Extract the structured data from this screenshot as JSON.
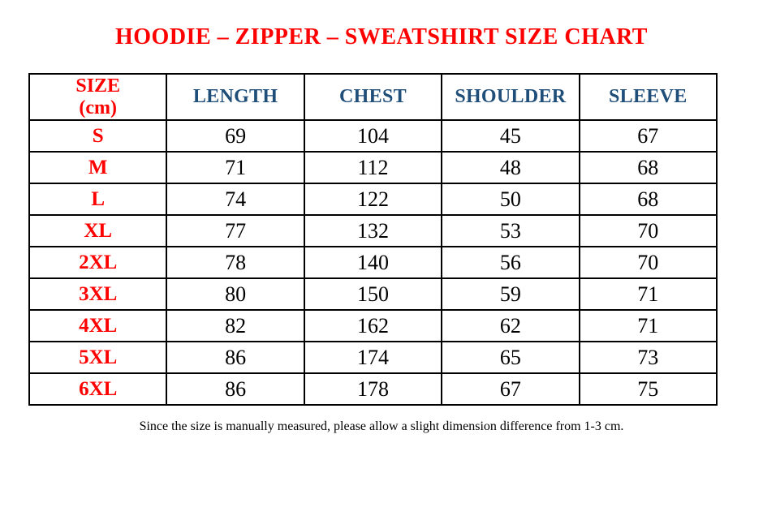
{
  "meta": {
    "stray_mark": "."
  },
  "colors": {
    "title_red": "#ff0000",
    "size_label_red": "#ff0000",
    "header_blue": "#1f4e79",
    "border_black": "#000000",
    "background": "#ffffff"
  },
  "title": "HOODIE – ZIPPER – SWEATSHIRT SIZE CHART",
  "table": {
    "header": {
      "size_line1": "SIZE",
      "size_line2": "(cm)",
      "cols": [
        "LENGTH",
        "CHEST",
        "SHOULDER",
        "SLEEVE"
      ]
    },
    "rows": [
      {
        "size": "S",
        "values": [
          69,
          104,
          45,
          67
        ]
      },
      {
        "size": "M",
        "values": [
          71,
          112,
          48,
          68
        ]
      },
      {
        "size": "L",
        "values": [
          74,
          122,
          50,
          68
        ]
      },
      {
        "size": "XL",
        "values": [
          77,
          132,
          53,
          70
        ]
      },
      {
        "size": "2XL",
        "values": [
          78,
          140,
          56,
          70
        ]
      },
      {
        "size": "3XL",
        "values": [
          80,
          150,
          59,
          71
        ]
      },
      {
        "size": "4XL",
        "values": [
          82,
          162,
          62,
          71
        ]
      },
      {
        "size": "5XL",
        "values": [
          86,
          174,
          65,
          73
        ]
      },
      {
        "size": "6XL",
        "values": [
          86,
          178,
          67,
          75
        ]
      }
    ]
  },
  "footer": {
    "note": "Since the size is manually measured, please allow a slight dimension difference from 1-3 cm."
  }
}
